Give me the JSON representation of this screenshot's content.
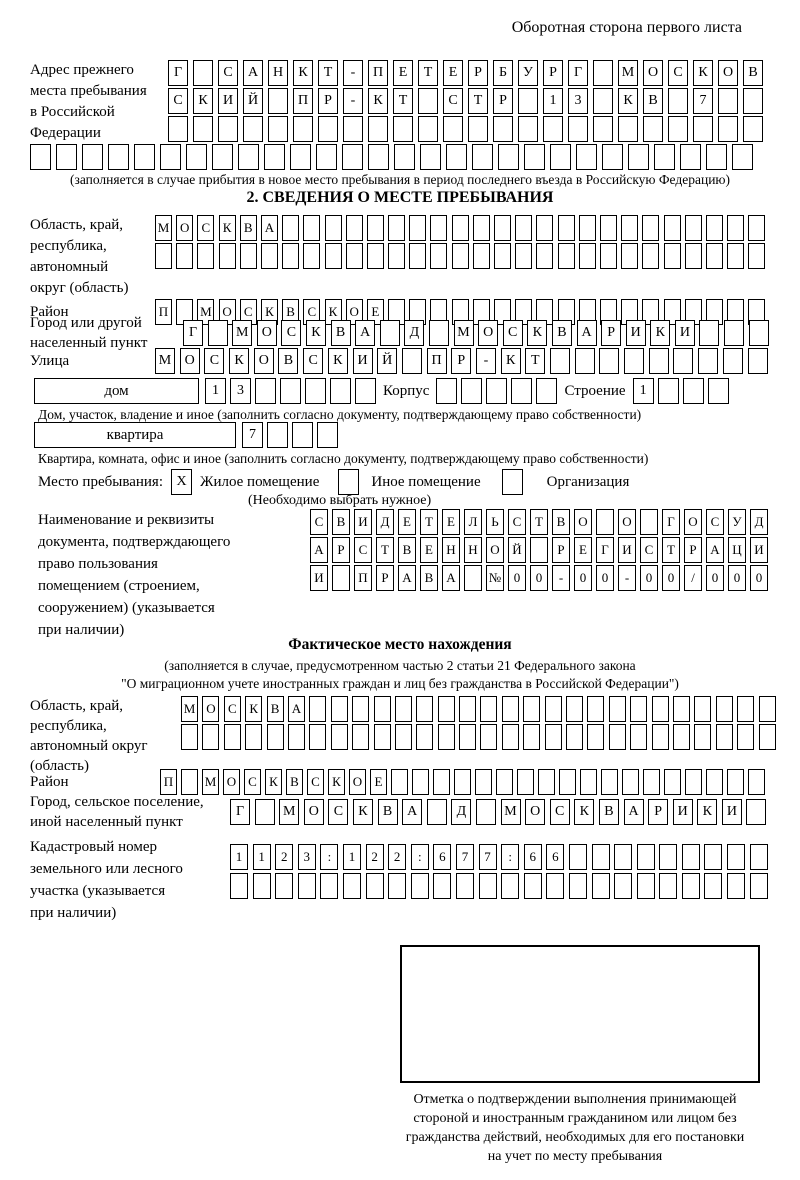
{
  "header": {
    "back_side_note": "Оборотная сторона первого листа"
  },
  "prev_address": {
    "label_lines": [
      "Адрес прежнего",
      "места пребывания",
      "в Российской",
      "Федерации"
    ],
    "rows": [
      [
        "Г",
        "",
        "С",
        "А",
        "Н",
        "К",
        "Т",
        "-",
        "П",
        "Е",
        "Т",
        "Е",
        "Р",
        "Б",
        "У",
        "Р",
        "Г",
        "",
        "М",
        "О",
        "С",
        "К",
        "О",
        "В"
      ],
      [
        "С",
        "К",
        "И",
        "Й",
        "",
        "П",
        "Р",
        "-",
        "К",
        "Т",
        "",
        "С",
        "Т",
        "Р",
        "",
        "1",
        "3",
        "",
        "К",
        "В",
        "",
        "7",
        "",
        ""
      ],
      [
        "",
        "",
        "",
        "",
        "",
        "",
        "",
        "",
        "",
        "",
        "",
        "",
        "",
        "",
        "",
        "",
        "",
        "",
        "",
        "",
        "",
        "",
        "",
        ""
      ]
    ],
    "overflow_row": [
      "",
      "",
      "",
      "",
      "",
      "",
      "",
      "",
      "",
      "",
      "",
      "",
      "",
      "",
      "",
      "",
      "",
      "",
      "",
      "",
      "",
      "",
      "",
      "",
      "",
      "",
      "",
      ""
    ],
    "note": "(заполняется в случае прибытия в новое место пребывания в период последнего въезда в Российскую Федерацию)"
  },
  "section2": {
    "title": "2. СВЕДЕНИЯ О МЕСТЕ ПРЕБЫВАНИЯ",
    "region": {
      "label_lines": [
        "Область, край,",
        "республика,",
        "автономный",
        "округ (область)"
      ],
      "rows": [
        [
          "М",
          "О",
          "С",
          "К",
          "В",
          "А",
          "",
          "",
          "",
          "",
          "",
          "",
          "",
          "",
          "",
          "",
          "",
          "",
          "",
          "",
          "",
          "",
          "",
          "",
          "",
          "",
          "",
          "",
          ""
        ],
        [
          "",
          "",
          "",
          "",
          "",
          "",
          "",
          "",
          "",
          "",
          "",
          "",
          "",
          "",
          "",
          "",
          "",
          "",
          "",
          "",
          "",
          "",
          "",
          "",
          "",
          "",
          "",
          "",
          ""
        ]
      ]
    },
    "district": {
      "label": "Район",
      "row": [
        "П",
        "",
        "М",
        "О",
        "С",
        "К",
        "В",
        "С",
        "К",
        "О",
        "Е",
        "",
        "",
        "",
        "",
        "",
        "",
        "",
        "",
        "",
        "",
        "",
        "",
        "",
        "",
        "",
        "",
        "",
        ""
      ]
    },
    "city": {
      "label_lines": [
        "Город или другой",
        "населенный пункт"
      ],
      "row": [
        "Г",
        "",
        "М",
        "О",
        "С",
        "К",
        "В",
        "А",
        "",
        "Д",
        "",
        "М",
        "О",
        "С",
        "К",
        "В",
        "А",
        "Р",
        "И",
        "К",
        "И",
        "",
        "",
        ""
      ]
    },
    "street": {
      "label": "Улица",
      "row": [
        "М",
        "О",
        "С",
        "К",
        "О",
        "В",
        "С",
        "К",
        "И",
        "Й",
        "",
        "П",
        "Р",
        "-",
        "К",
        "Т",
        "",
        "",
        "",
        "",
        "",
        "",
        "",
        "",
        ""
      ]
    },
    "house": {
      "box_label": "дом",
      "cells": [
        "1",
        "3",
        "",
        "",
        "",
        "",
        ""
      ],
      "korpus_label": "Корпус",
      "korpus_cells": [
        "",
        "",
        "",
        "",
        ""
      ],
      "stroenie_label": "Строение",
      "stroenie_cells": [
        "1",
        "",
        "",
        ""
      ]
    },
    "house_note": "Дом, участок, владение и иное (заполнить согласно документу, подтверждающему право собственности)",
    "apartment": {
      "box_label": "квартира",
      "cells": [
        "7",
        "",
        "",
        ""
      ]
    },
    "apartment_note": "Квартира, комната, офис и иное (заполнить согласно документу, подтверждающему право собственности)",
    "stay_type": {
      "label": "Место пребывания:",
      "options": [
        {
          "label": "Жилое помещение",
          "mark": "X"
        },
        {
          "label": "Иное помещение",
          "mark": ""
        },
        {
          "label": "Организация",
          "mark": ""
        }
      ],
      "note": "(Необходимо выбрать нужное)"
    },
    "document": {
      "label_lines": [
        "Наименование и реквизиты",
        "документа, подтверждающего",
        "право пользования",
        "помещением (строением,",
        "сооружением) (указывается",
        "при наличии)"
      ],
      "rows": [
        [
          "С",
          "В",
          "И",
          "Д",
          "Е",
          "Т",
          "Е",
          "Л",
          "Ь",
          "С",
          "Т",
          "В",
          "О",
          "",
          "О",
          "",
          "Г",
          "О",
          "С",
          "У",
          "Д"
        ],
        [
          "А",
          "Р",
          "С",
          "Т",
          "В",
          "Е",
          "Н",
          "Н",
          "О",
          "Й",
          "",
          "Р",
          "Е",
          "Г",
          "И",
          "С",
          "Т",
          "Р",
          "А",
          "Ц",
          "И"
        ],
        [
          "И",
          "",
          "П",
          "Р",
          "А",
          "В",
          "А",
          "",
          "№",
          "0",
          "0",
          "-",
          "0",
          "0",
          "-",
          "0",
          "0",
          "/",
          "0",
          "0",
          "0"
        ]
      ]
    }
  },
  "actual_location": {
    "title": "Фактическое место нахождения",
    "note_lines": [
      "(заполняется в случае, предусмотренном частью 2 статьи 21 Федерального закона",
      "\"О миграционном учете иностранных граждан и лиц без гражданства в Российской Федерации\")"
    ],
    "region": {
      "label_lines": [
        "Область, край,",
        "республика,",
        "автономный округ",
        "(область)"
      ],
      "rows": [
        [
          "М",
          "О",
          "С",
          "К",
          "В",
          "А",
          "",
          "",
          "",
          "",
          "",
          "",
          "",
          "",
          "",
          "",
          "",
          "",
          "",
          "",
          "",
          "",
          "",
          "",
          "",
          "",
          "",
          ""
        ],
        [
          "",
          "",
          "",
          "",
          "",
          "",
          "",
          "",
          "",
          "",
          "",
          "",
          "",
          "",
          "",
          "",
          "",
          "",
          "",
          "",
          "",
          "",
          "",
          "",
          "",
          "",
          "",
          ""
        ]
      ]
    },
    "district": {
      "label": "Район",
      "row": [
        "П",
        "",
        "М",
        "О",
        "С",
        "К",
        "В",
        "С",
        "К",
        "О",
        "Е",
        "",
        "",
        "",
        "",
        "",
        "",
        "",
        "",
        "",
        "",
        "",
        "",
        "",
        "",
        "",
        "",
        "",
        ""
      ]
    },
    "city": {
      "label_lines": [
        "Город, сельское поселение,",
        "иной населенный пункт"
      ],
      "row": [
        "Г",
        "",
        "М",
        "О",
        "С",
        "К",
        "В",
        "А",
        "",
        "Д",
        "",
        "М",
        "О",
        "С",
        "К",
        "В",
        "А",
        "Р",
        "И",
        "К",
        "И",
        ""
      ]
    },
    "cadastral": {
      "label_lines": [
        "Кадастровый номер",
        "земельного или лесного",
        "участка (указывается",
        "при наличии)"
      ],
      "rows": [
        [
          "1",
          "1",
          "2",
          "3",
          ":",
          "1",
          "2",
          "2",
          ":",
          "6",
          "7",
          "7",
          ":",
          "6",
          "6",
          "",
          "",
          "",
          "",
          "",
          "",
          "",
          "",
          ""
        ],
        [
          "",
          "",
          "",
          "",
          "",
          "",
          "",
          "",
          "",
          "",
          "",
          "",
          "",
          "",
          "",
          "",
          "",
          "",
          "",
          "",
          "",
          "",
          "",
          ""
        ]
      ]
    },
    "stamp_note_lines": [
      "Отметка о подтверждении выполнения принимающей",
      "стороной и иностранным гражданином или лицом без",
      "гражданства действий, необходимых для его постановки",
      "на учет по месту пребывания"
    ]
  }
}
